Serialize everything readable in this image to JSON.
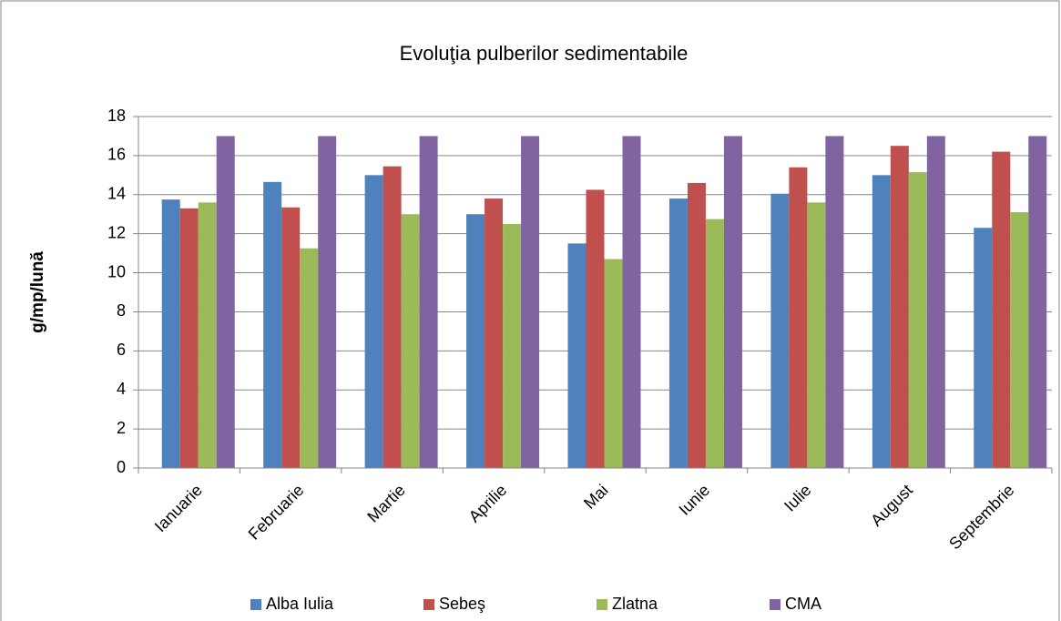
{
  "chart_data": {
    "type": "bar",
    "title": "Evoluţia pulberilor sedimentabile",
    "y_label": "g/mp/lună",
    "categories": [
      "Ianuarie",
      "Februarie",
      "Martie",
      "Aprilie",
      "Mai",
      "Iunie",
      "Iulie",
      "August",
      "Septembrie"
    ],
    "series": [
      {
        "name": "Alba Iulia",
        "color": "#4f81bd",
        "values": [
          13.75,
          14.65,
          15.0,
          13.0,
          11.5,
          13.8,
          14.05,
          15.0,
          12.3
        ]
      },
      {
        "name": "Sebeş",
        "color": "#c0504d",
        "values": [
          13.3,
          13.35,
          15.45,
          13.8,
          14.25,
          14.6,
          15.4,
          16.5,
          16.2
        ]
      },
      {
        "name": "Zlatna",
        "color": "#9bbb59",
        "values": [
          13.6,
          11.25,
          13.0,
          12.5,
          10.7,
          12.75,
          13.6,
          15.15,
          13.1
        ]
      },
      {
        "name": "CMA",
        "color": "#8064a2",
        "values": [
          17,
          17,
          17,
          17,
          17,
          17,
          17,
          17,
          17
        ]
      }
    ],
    "ylim": [
      0,
      18
    ],
    "yticks": [
      0,
      2,
      4,
      6,
      8,
      10,
      12,
      14,
      16,
      18
    ],
    "grid": true,
    "legend": "bottom"
  }
}
